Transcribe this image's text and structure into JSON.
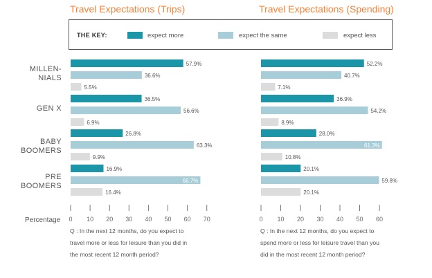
{
  "titles": {
    "left": "Travel Expectations (Trips)",
    "right": "Travel Expectations (Spending)"
  },
  "legend": {
    "key_label": "THE KEY:",
    "items": [
      {
        "label": "expect more",
        "color": "#1b96a8"
      },
      {
        "label": "expect the same",
        "color": "#a6cdd8"
      },
      {
        "label": "expect less",
        "color": "#dcdcdc"
      }
    ]
  },
  "groups": {
    "millennials": [
      "MILLEN-",
      "NIALS"
    ],
    "genx": [
      "GEN X"
    ],
    "baby_boomers": [
      "BABY",
      "BOOMERS"
    ],
    "pre_boomers": [
      "PRE",
      "BOOMERS"
    ]
  },
  "axis_label": "Percentage",
  "questions": {
    "left": [
      "Q : In the next 12 months, do you expect to",
      "travel more or less for leisure than you did in",
      "the most recent 12 month period?"
    ],
    "right": [
      "Q : In the next 12 months, do you expect to",
      "spend more or less for leisure travel than you",
      "did in the most recent 12 month period?"
    ]
  },
  "chart_data": [
    {
      "type": "bar",
      "orientation": "horizontal",
      "title": "Travel Expectations (Trips)",
      "categories": [
        "MILLENNIALS",
        "GEN X",
        "BABY BOOMERS",
        "PRE BOOMERS"
      ],
      "series": [
        {
          "name": "expect more",
          "values": [
            57.9,
            36.5,
            26.8,
            16.9
          ],
          "labels": [
            "57.9%",
            "36.5%",
            "26.8%",
            "16.9%"
          ]
        },
        {
          "name": "expect the same",
          "values": [
            36.6,
            56.6,
            63.3,
            66.7
          ],
          "labels": [
            "36.6%",
            "56.6%",
            "63.3%",
            "66.7%"
          ]
        },
        {
          "name": "expect less",
          "values": [
            5.5,
            6.9,
            9.9,
            16.4
          ],
          "labels": [
            "5.5%",
            "6.9%",
            "9.9%",
            "16.4%"
          ]
        }
      ],
      "xlim": [
        0,
        70
      ],
      "xticks": [
        "0",
        "10",
        "20",
        "30",
        "40",
        "50",
        "60",
        "70"
      ],
      "xlabel": "Percentage",
      "inside_label_series": [
        [],
        [],
        [],
        [
          1
        ]
      ]
    },
    {
      "type": "bar",
      "orientation": "horizontal",
      "title": "Travel Expectations (Spending)",
      "categories": [
        "MILLENNIALS",
        "GEN X",
        "BABY BOOMERS",
        "PRE BOOMERS"
      ],
      "series": [
        {
          "name": "expect more",
          "values": [
            52.2,
            36.9,
            28.0,
            20.1
          ],
          "labels": [
            "52.2%",
            "36.9%",
            "28.0%",
            "20.1%"
          ]
        },
        {
          "name": "expect the same",
          "values": [
            40.7,
            54.2,
            61.3,
            59.8
          ],
          "labels": [
            "40.7%",
            "54.2%",
            "61.3%",
            "59.8%"
          ]
        },
        {
          "name": "expect less",
          "values": [
            7.1,
            8.9,
            10.8,
            20.1
          ],
          "labels": [
            "7.1%",
            "8.9%",
            "10.8%",
            "20.1%"
          ]
        }
      ],
      "xlim": [
        0,
        60
      ],
      "xticks": [
        "0",
        "10",
        "20",
        "30",
        "40",
        "50",
        "60"
      ],
      "xlabel": "",
      "inside_label_series": [
        [],
        [],
        [
          1
        ],
        []
      ]
    }
  ]
}
